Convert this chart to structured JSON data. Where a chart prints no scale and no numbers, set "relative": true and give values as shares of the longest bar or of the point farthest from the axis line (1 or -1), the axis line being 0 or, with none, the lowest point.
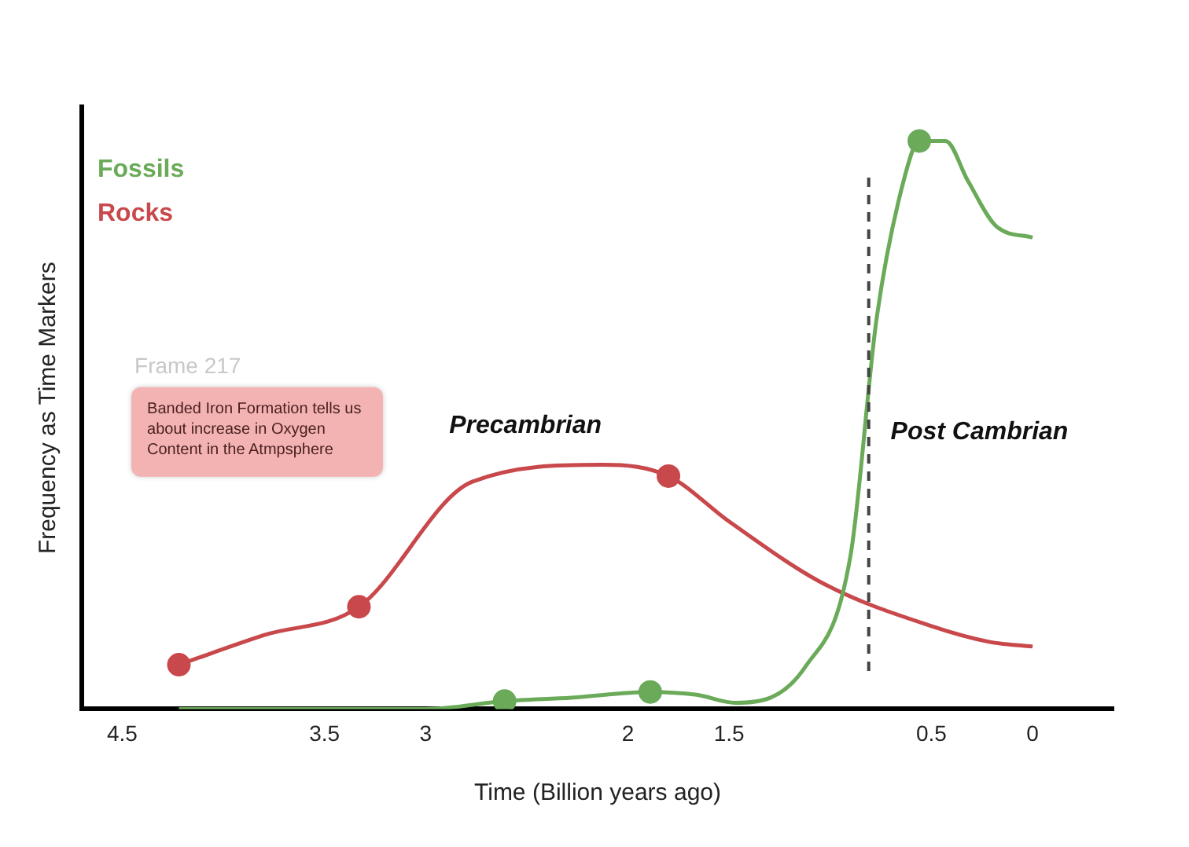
{
  "chart_data": {
    "type": "line",
    "xlabel": "Time (Billion years ago)",
    "ylabel": "Frequency as Time Markers",
    "relative": true,
    "xlim": [
      4.7,
      -0.4
    ],
    "xticks": [
      4.5,
      3.5,
      3,
      2,
      1.5,
      0.5,
      0
    ],
    "grid": false,
    "legend": "top left",
    "marker": "none",
    "series": [
      {
        "name": "Fossils",
        "color": "#6aaa58",
        "x": [
          4.22,
          3,
          2.61,
          2.28,
          1.89,
          1.66,
          1.47,
          1.12,
          0.9,
          0.77,
          0.63,
          0.56,
          0.43,
          0.32,
          0.18,
          0
        ],
        "values": [
          0,
          0,
          0.014,
          0.02,
          0.03,
          0.025,
          0.011,
          0.076,
          0.27,
          0.69,
          0.94,
          1,
          1,
          0.93,
          0.85,
          0.83
        ]
      },
      {
        "name": "Rocks",
        "color": "#c8484b",
        "x": [
          4.22,
          3.8,
          3.33,
          2.77,
          2.12,
          1.8,
          1.5,
          1.03,
          0.5,
          0.21,
          0
        ],
        "values": [
          0.078,
          0.13,
          0.18,
          0.4,
          0.43,
          0.41,
          0.33,
          0.22,
          0.146,
          0.118,
          0.11
        ]
      },
      {
        "type": "scatter",
        "color": "#6aaa58",
        "x": [
          2.61,
          1.89,
          0.56
        ],
        "values": [
          0.014,
          0.03,
          1
        ],
        "marker": "circle"
      },
      {
        "type": "scatter",
        "color": "#c8484b",
        "x": [
          4.22,
          3.33,
          1.8
        ],
        "values": [
          0.078,
          0.18,
          0.41
        ],
        "marker": "circle"
      }
    ],
    "ref_lines": [
      {
        "axis": "x",
        "value": 0.81,
        "color": "#444444",
        "line_style": "dashed"
      }
    ],
    "annotations": [
      "Precambrian",
      "Post Cambrian",
      "Banded Iron Formation tells us about increase in Oxygen Content in the Atmpsphere",
      "Frame 217"
    ]
  }
}
